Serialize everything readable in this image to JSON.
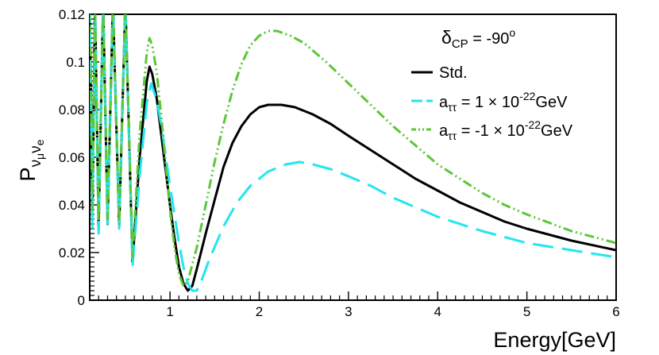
{
  "chart_data": {
    "type": "line",
    "title": "",
    "xlabel": "Energy[GeV]",
    "ylabel": "P",
    "ylabel_sub": "ν",
    "ylabel_sub_sub1": "μ",
    "ylabel_sub2": "ν",
    "ylabel_sub_sub2": "e",
    "xlim": [
      0.1,
      6.0
    ],
    "ylim": [
      0.0,
      0.12
    ],
    "xticks": [
      1,
      2,
      3,
      4,
      5,
      6
    ],
    "xtick_labels": [
      "1",
      "2",
      "3",
      "4",
      "5",
      "6"
    ],
    "yticks": [
      0,
      0.02,
      0.04,
      0.06,
      0.08,
      0.1,
      0.12
    ],
    "ytick_labels": [
      "0",
      "0.02",
      "0.04",
      "0.06",
      "0.08",
      "0.1",
      "0.12"
    ],
    "legend": {
      "placement": "top-right",
      "header": {
        "delta": "δ",
        "sub": "CP",
        "text": " = -90",
        "sup": "o"
      },
      "entries": [
        {
          "series": 0,
          "label": "Std."
        },
        {
          "series": 1,
          "prefix": "a",
          "sub": "ττ",
          "value": " = 1 × 10",
          "sup": "-22",
          "unit": "GeV"
        },
        {
          "series": 2,
          "prefix": "a",
          "sub": "ττ",
          "value": " = -1 × 10",
          "sup": "-22",
          "unit": "GeV"
        }
      ]
    },
    "series": [
      {
        "name": "Std.",
        "color": "#000000",
        "dash": "solid",
        "points": [
          [
            0.1,
            0.125
          ],
          [
            0.13,
            0.035
          ],
          [
            0.16,
            0.125
          ],
          [
            0.2,
            0.03
          ],
          [
            0.25,
            0.125
          ],
          [
            0.3,
            0.032
          ],
          [
            0.36,
            0.125
          ],
          [
            0.43,
            0.031
          ],
          [
            0.5,
            0.125
          ],
          [
            0.58,
            0.016
          ],
          [
            0.66,
            0.06
          ],
          [
            0.74,
            0.092
          ],
          [
            0.77,
            0.098
          ],
          [
            0.8,
            0.095
          ],
          [
            0.85,
            0.085
          ],
          [
            0.9,
            0.07
          ],
          [
            0.95,
            0.055
          ],
          [
            1.0,
            0.04
          ],
          [
            1.05,
            0.026
          ],
          [
            1.1,
            0.014
          ],
          [
            1.15,
            0.007
          ],
          [
            1.2,
            0.004
          ],
          [
            1.25,
            0.006
          ],
          [
            1.3,
            0.013
          ],
          [
            1.4,
            0.028
          ],
          [
            1.5,
            0.042
          ],
          [
            1.6,
            0.056
          ],
          [
            1.7,
            0.066
          ],
          [
            1.8,
            0.073
          ],
          [
            1.9,
            0.078
          ],
          [
            2.0,
            0.081
          ],
          [
            2.1,
            0.082
          ],
          [
            2.25,
            0.082
          ],
          [
            2.4,
            0.081
          ],
          [
            2.6,
            0.078
          ],
          [
            2.8,
            0.074
          ],
          [
            3.0,
            0.069
          ],
          [
            3.25,
            0.063
          ],
          [
            3.5,
            0.057
          ],
          [
            3.75,
            0.051
          ],
          [
            4.0,
            0.046
          ],
          [
            4.25,
            0.041
          ],
          [
            4.5,
            0.037
          ],
          [
            4.75,
            0.033
          ],
          [
            5.0,
            0.03
          ],
          [
            5.5,
            0.025
          ],
          [
            6.0,
            0.021
          ]
        ]
      },
      {
        "name": "a_tt = 1e-22 GeV",
        "color": "#22e6f0",
        "dash": "long-dash",
        "points": [
          [
            0.1,
            0.125
          ],
          [
            0.13,
            0.03
          ],
          [
            0.16,
            0.125
          ],
          [
            0.2,
            0.028
          ],
          [
            0.25,
            0.125
          ],
          [
            0.3,
            0.03
          ],
          [
            0.36,
            0.125
          ],
          [
            0.43,
            0.03
          ],
          [
            0.5,
            0.125
          ],
          [
            0.58,
            0.014
          ],
          [
            0.66,
            0.052
          ],
          [
            0.74,
            0.083
          ],
          [
            0.79,
            0.091
          ],
          [
            0.85,
            0.084
          ],
          [
            0.9,
            0.074
          ],
          [
            0.95,
            0.061
          ],
          [
            1.0,
            0.048
          ],
          [
            1.05,
            0.036
          ],
          [
            1.1,
            0.024
          ],
          [
            1.15,
            0.014
          ],
          [
            1.2,
            0.007
          ],
          [
            1.25,
            0.004
          ],
          [
            1.3,
            0.004
          ],
          [
            1.35,
            0.008
          ],
          [
            1.45,
            0.018
          ],
          [
            1.6,
            0.031
          ],
          [
            1.75,
            0.041
          ],
          [
            1.9,
            0.048
          ],
          [
            2.1,
            0.054
          ],
          [
            2.3,
            0.057
          ],
          [
            2.45,
            0.058
          ],
          [
            2.6,
            0.057
          ],
          [
            2.8,
            0.055
          ],
          [
            3.0,
            0.052
          ],
          [
            3.25,
            0.048
          ],
          [
            3.5,
            0.043
          ],
          [
            3.75,
            0.039
          ],
          [
            4.0,
            0.035
          ],
          [
            4.5,
            0.029
          ],
          [
            5.0,
            0.024
          ],
          [
            5.5,
            0.021
          ],
          [
            6.0,
            0.018
          ]
        ]
      },
      {
        "name": "a_tt = -1e-22 GeV",
        "color": "#5cc638",
        "dash": "dash-dot-dot",
        "points": [
          [
            0.1,
            0.125
          ],
          [
            0.13,
            0.038
          ],
          [
            0.16,
            0.125
          ],
          [
            0.2,
            0.033
          ],
          [
            0.25,
            0.125
          ],
          [
            0.3,
            0.034
          ],
          [
            0.36,
            0.125
          ],
          [
            0.43,
            0.032
          ],
          [
            0.5,
            0.125
          ],
          [
            0.58,
            0.018
          ],
          [
            0.66,
            0.07
          ],
          [
            0.74,
            0.104
          ],
          [
            0.77,
            0.11
          ],
          [
            0.8,
            0.107
          ],
          [
            0.85,
            0.096
          ],
          [
            0.9,
            0.078
          ],
          [
            0.95,
            0.058
          ],
          [
            1.0,
            0.038
          ],
          [
            1.05,
            0.022
          ],
          [
            1.1,
            0.011
          ],
          [
            1.15,
            0.006
          ],
          [
            1.2,
            0.008
          ],
          [
            1.3,
            0.022
          ],
          [
            1.4,
            0.04
          ],
          [
            1.5,
            0.058
          ],
          [
            1.6,
            0.074
          ],
          [
            1.7,
            0.088
          ],
          [
            1.8,
            0.099
          ],
          [
            1.9,
            0.107
          ],
          [
            2.0,
            0.111
          ],
          [
            2.1,
            0.113
          ],
          [
            2.2,
            0.113
          ],
          [
            2.35,
            0.111
          ],
          [
            2.5,
            0.108
          ],
          [
            2.75,
            0.1
          ],
          [
            3.0,
            0.091
          ],
          [
            3.25,
            0.082
          ],
          [
            3.5,
            0.073
          ],
          [
            3.75,
            0.065
          ],
          [
            4.0,
            0.057
          ],
          [
            4.25,
            0.051
          ],
          [
            4.5,
            0.045
          ],
          [
            4.75,
            0.04
          ],
          [
            5.0,
            0.036
          ],
          [
            5.5,
            0.029
          ],
          [
            6.0,
            0.024
          ]
        ]
      }
    ]
  }
}
